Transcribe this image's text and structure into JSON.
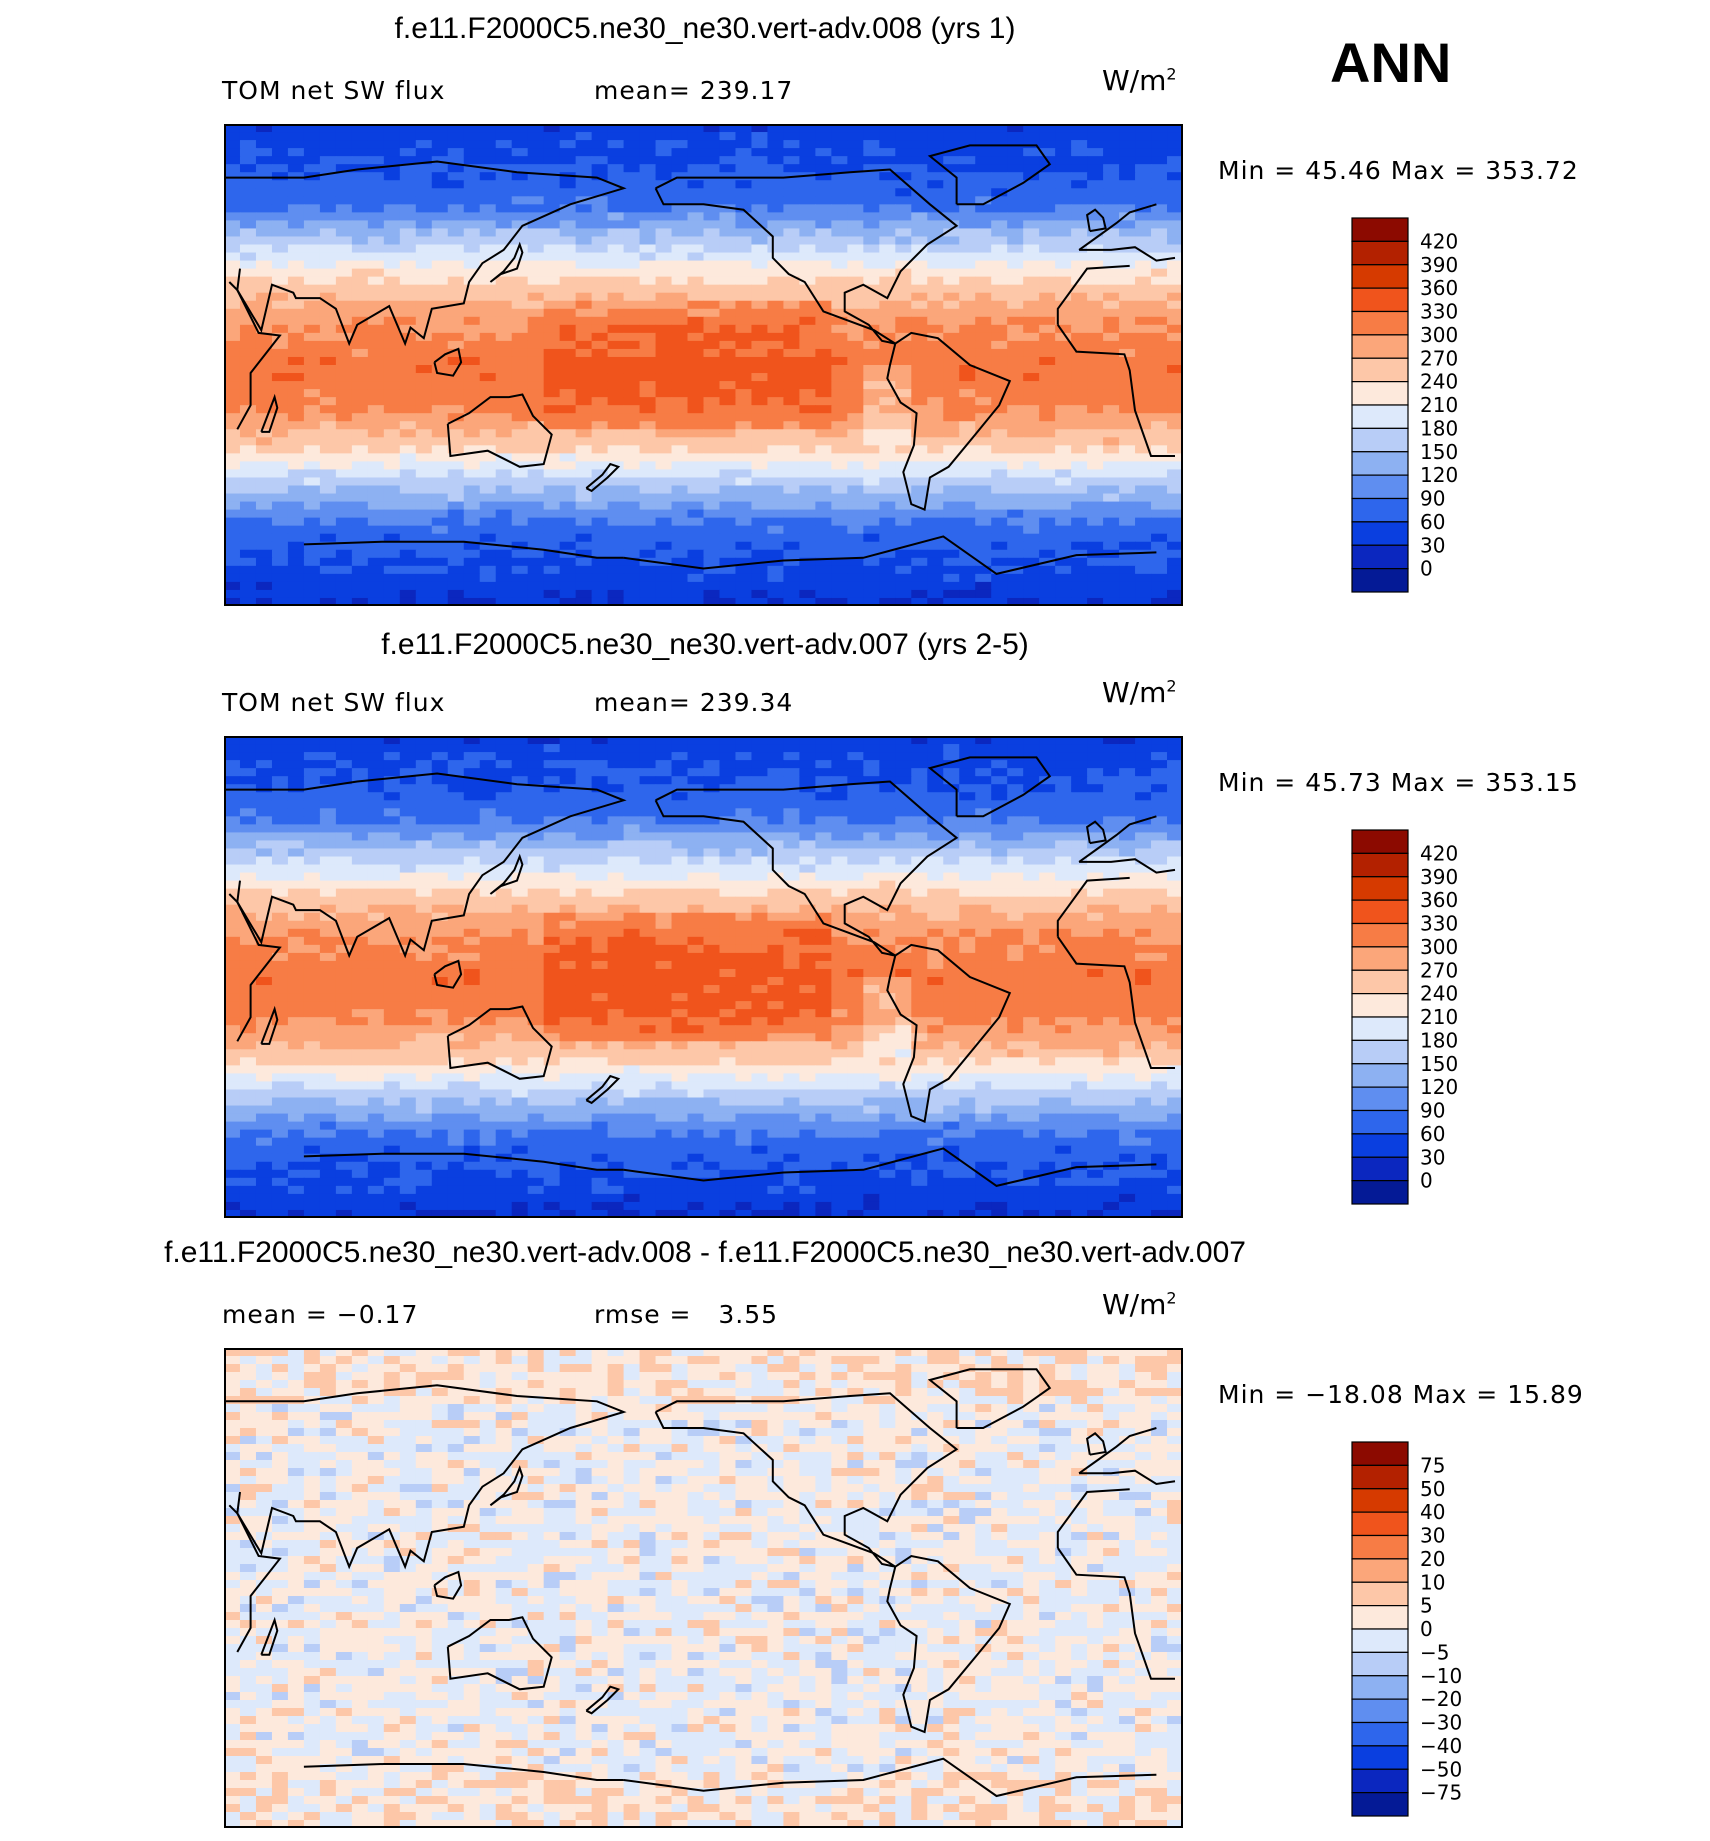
{
  "season": "ANN",
  "units_base": "W/m",
  "units_exp": "2",
  "chart_data": [
    {
      "type": "heatmap",
      "title": "f.e11.F2000C5.ne30_ne30.vert-adv.008 (yrs 1)",
      "left_label": "TOM net SW flux",
      "stat_label": "mean=",
      "stat_value": "239.17",
      "minmax": "Min =   45.46 Max =  353.72",
      "colorbar_levels": [
        "420",
        "390",
        "360",
        "330",
        "300",
        "270",
        "240",
        "210",
        "180",
        "150",
        "120",
        "90",
        "60",
        "30",
        "0"
      ],
      "colorbar_colors": [
        "#8c0a00",
        "#b32100",
        "#d63a00",
        "#f0541c",
        "#f77c45",
        "#fba67a",
        "#fdc7a8",
        "#fde9dc",
        "#dde9fb",
        "#b8cdf7",
        "#8db1f2",
        "#5f8ef0",
        "#2e66ec",
        "#0a3fe0",
        "#0b27bf",
        "#041a96"
      ],
      "zonal_profile": [
        {
          "lat": 90,
          "v": 40
        },
        {
          "lat": 60,
          "v": 80
        },
        {
          "lat": 45,
          "v": 170
        },
        {
          "lat": 30,
          "v": 250
        },
        {
          "lat": 15,
          "v": 300
        },
        {
          "lat": 0,
          "v": 320
        },
        {
          "lat": -15,
          "v": 310
        },
        {
          "lat": -30,
          "v": 250
        },
        {
          "lat": -45,
          "v": 160
        },
        {
          "lat": -60,
          "v": 80
        },
        {
          "lat": -90,
          "v": 30
        }
      ]
    },
    {
      "type": "heatmap",
      "title": "f.e11.F2000C5.ne30_ne30.vert-adv.007 (yrs 2-5)",
      "left_label": "TOM net SW flux",
      "stat_label": "mean=",
      "stat_value": "239.34",
      "minmax": "Min =   45.73 Max =  353.15",
      "colorbar_levels": [
        "420",
        "390",
        "360",
        "330",
        "300",
        "270",
        "240",
        "210",
        "180",
        "150",
        "120",
        "90",
        "60",
        "30",
        "0"
      ],
      "colorbar_colors": [
        "#8c0a00",
        "#b32100",
        "#d63a00",
        "#f0541c",
        "#f77c45",
        "#fba67a",
        "#fdc7a8",
        "#fde9dc",
        "#dde9fb",
        "#b8cdf7",
        "#8db1f2",
        "#5f8ef0",
        "#2e66ec",
        "#0a3fe0",
        "#0b27bf",
        "#041a96"
      ],
      "zonal_profile": [
        {
          "lat": 90,
          "v": 40
        },
        {
          "lat": 60,
          "v": 80
        },
        {
          "lat": 45,
          "v": 170
        },
        {
          "lat": 30,
          "v": 250
        },
        {
          "lat": 15,
          "v": 300
        },
        {
          "lat": 0,
          "v": 320
        },
        {
          "lat": -15,
          "v": 310
        },
        {
          "lat": -30,
          "v": 250
        },
        {
          "lat": -45,
          "v": 160
        },
        {
          "lat": -60,
          "v": 80
        },
        {
          "lat": -90,
          "v": 30
        }
      ]
    },
    {
      "type": "heatmap",
      "title": "f.e11.F2000C5.ne30_ne30.vert-adv.008 - f.e11.F2000C5.ne30_ne30.vert-adv.007",
      "left_label": "mean =",
      "left_value": "−0.17",
      "stat_label": "rmse =",
      "stat_value": "3.55",
      "minmax": "Min = −18.08 Max =   15.89",
      "colorbar_levels": [
        "75",
        "50",
        "40",
        "30",
        "20",
        "10",
        "5",
        "0",
        "−5",
        "−10",
        "−20",
        "−30",
        "−40",
        "−50",
        "−75"
      ],
      "colorbar_colors": [
        "#8c0a00",
        "#b32100",
        "#d63a00",
        "#f0541c",
        "#f77c45",
        "#fba67a",
        "#fdc7a8",
        "#fde9dc",
        "#dde9fb",
        "#b8cdf7",
        "#8db1f2",
        "#5f8ef0",
        "#2e66ec",
        "#0a3fe0",
        "#0b27bf",
        "#041a96"
      ]
    }
  ]
}
